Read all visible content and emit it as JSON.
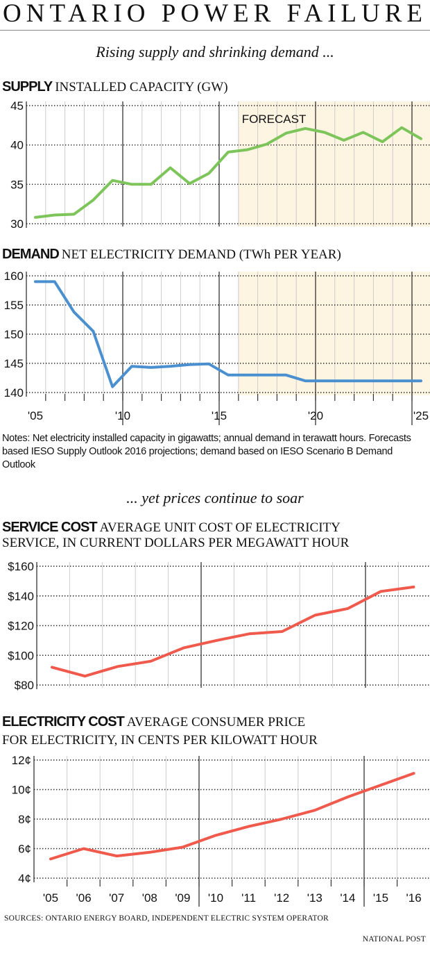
{
  "header": {
    "title": "ONTARIO POWER FAILURE"
  },
  "section1": {
    "kicker": "Rising supply and shrinking demand ..."
  },
  "section2": {
    "kicker": "... yet prices continue to soar"
  },
  "supply": {
    "bold": "SUPPLY",
    "rest": "INSTALLED CAPACITY (GW)"
  },
  "demand": {
    "bold": "DEMAND",
    "rest": "NET ELECTRICITY DEMAND (TWh PER YEAR)"
  },
  "service": {
    "bold": "SERVICE COST",
    "rest1": "AVERAGE UNIT COST OF ELECTRICITY",
    "line2": "SERVICE, IN CURRENT DOLLARS PER MEGAWATT HOUR"
  },
  "elec": {
    "bold": "ELECTRICITY COST",
    "rest1": "AVERAGE CONSUMER PRICE",
    "line2": "FOR ELECTRICITY, IN CENTS PER KILOWATT HOUR"
  },
  "notes": "Notes: Net electricity installed capacity in gigawatts; annual demand in terawatt hours. Forecasts based IESO Supply Outlook 2016 projections; demand based on IESO  Scenario B Demand Outlook",
  "footer": {
    "sources": "SOURCES: ONTARIO ENERGY BOARD, INDEPENDENT ELECTRIC SYSTEM OPERATOR",
    "credit": "NATIONAL POST"
  },
  "chart_data": [
    {
      "type": "line",
      "title": "SUPPLY INSTALLED CAPACITY (GW)",
      "color": "#7dc55a",
      "x": [
        2005,
        2006,
        2007,
        2008,
        2009,
        2010,
        2011,
        2012,
        2013,
        2014,
        2015,
        2016,
        2017,
        2018,
        2019,
        2020,
        2021,
        2022,
        2023,
        2024,
        2025
      ],
      "values": [
        30.8,
        31.1,
        31.2,
        33.0,
        35.5,
        35.0,
        35.0,
        37.1,
        35.1,
        36.4,
        39.1,
        39.4,
        40.1,
        41.5,
        42.1,
        41.6,
        40.6,
        41.6,
        40.4,
        42.2,
        40.8
      ],
      "ylim": [
        30,
        45
      ],
      "yticks": [
        {
          "v": 30,
          "label": "30"
        },
        {
          "v": 35,
          "label": "35"
        },
        {
          "v": 40,
          "label": "40"
        },
        {
          "v": 45,
          "label": "45"
        }
      ],
      "forecast_from": 2016,
      "forecast_label": "FORECAST",
      "forecast_color": "#fdf5e1",
      "grid": true
    },
    {
      "type": "line",
      "title": "DEMAND NET ELECTRICITY DEMAND (TWh PER YEAR)",
      "color": "#4a90d0",
      "x": [
        2005,
        2006,
        2007,
        2008,
        2009,
        2010,
        2011,
        2012,
        2013,
        2014,
        2015,
        2016,
        2017,
        2018,
        2019,
        2020,
        2021,
        2022,
        2023,
        2024,
        2025
      ],
      "values": [
        159,
        159,
        153.8,
        150.5,
        141,
        144.5,
        144.3,
        144.5,
        144.8,
        144.9,
        143,
        143,
        143,
        143,
        142,
        142,
        142,
        142,
        142,
        142,
        142
      ],
      "ylim": [
        140,
        160
      ],
      "yticks": [
        {
          "v": 140,
          "label": "140"
        },
        {
          "v": 145,
          "label": "145"
        },
        {
          "v": 150,
          "label": "150"
        },
        {
          "v": 155,
          "label": "155"
        },
        {
          "v": 160,
          "label": "160"
        }
      ],
      "xticks": [
        "'05",
        "'10",
        "'15",
        "'20",
        "'25"
      ],
      "forecast_from": 2016,
      "forecast_color": "#fdf5e1",
      "grid": true
    },
    {
      "type": "line",
      "title": "SERVICE COST",
      "color": "#ef5a4c",
      "x": [
        2005,
        2006,
        2007,
        2008,
        2009,
        2010,
        2011,
        2012,
        2013,
        2014,
        2015,
        2016
      ],
      "values": [
        92,
        86,
        92.5,
        96,
        105,
        110,
        114.5,
        116,
        127,
        131.5,
        143,
        146
      ],
      "ylim": [
        80,
        160
      ],
      "yticks": [
        {
          "v": 80,
          "label": "$80"
        },
        {
          "v": 100,
          "label": "$100"
        },
        {
          "v": 120,
          "label": "$120"
        },
        {
          "v": 140,
          "label": "$140"
        },
        {
          "v": 160,
          "label": "$160"
        }
      ],
      "grid": true
    },
    {
      "type": "line",
      "title": "ELECTRICITY COST",
      "color": "#ef5a4c",
      "x": [
        2005,
        2006,
        2007,
        2008,
        2009,
        2010,
        2011,
        2012,
        2013,
        2014,
        2015,
        2016
      ],
      "values": [
        5.3,
        6.0,
        5.5,
        5.75,
        6.1,
        6.9,
        7.5,
        8.0,
        8.6,
        9.5,
        10.3,
        11.1
      ],
      "ylim": [
        4,
        12
      ],
      "yticks": [
        {
          "v": 4,
          "label": "4¢"
        },
        {
          "v": 6,
          "label": "6¢"
        },
        {
          "v": 8,
          "label": "8¢"
        },
        {
          "v": 10,
          "label": "10¢"
        },
        {
          "v": 12,
          "label": "12¢"
        }
      ],
      "xticks": [
        "'05",
        "'06",
        "'07",
        "'08",
        "'09",
        "'10",
        "'11",
        "'12",
        "'13",
        "'14",
        "'15",
        "'16"
      ],
      "grid": true
    }
  ]
}
